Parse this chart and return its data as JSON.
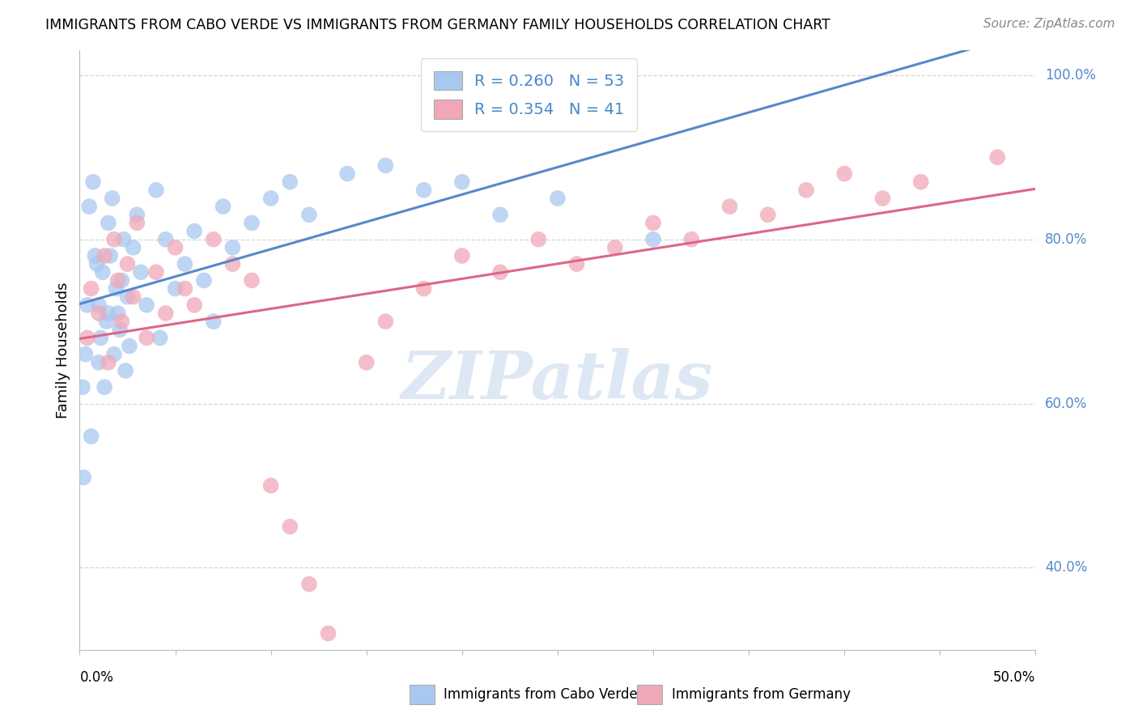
{
  "title": "IMMIGRANTS FROM CABO VERDE VS IMMIGRANTS FROM GERMANY FAMILY HOUSEHOLDS CORRELATION CHART",
  "source": "Source: ZipAtlas.com",
  "ylabel": "Family Households",
  "xmin": 0.0,
  "xmax": 50.0,
  "ymin": 30.0,
  "ymax": 103.0,
  "yticks": [
    40.0,
    60.0,
    80.0,
    100.0
  ],
  "ytick_labels": [
    "40.0%",
    "60.0%",
    "80.0%",
    "100.0%"
  ],
  "legend1_label": "R = 0.260   N = 53",
  "legend2_label": "R = 0.354   N = 41",
  "legend1_color": "#a8c8f0",
  "legend2_color": "#f0a8b8",
  "line1_color": "#5588cc",
  "line2_color": "#dd6688",
  "grid_color": "#cccccc",
  "watermark_color": "#d0dff0",
  "bottom_label1": "Immigrants from Cabo Verde",
  "bottom_label2": "Immigrants from Germany",
  "cabo_verde_x": [
    0.15,
    0.2,
    0.3,
    0.4,
    0.5,
    0.6,
    0.7,
    0.8,
    0.9,
    1.0,
    1.0,
    1.1,
    1.2,
    1.3,
    1.4,
    1.5,
    1.5,
    1.6,
    1.7,
    1.8,
    1.9,
    2.0,
    2.1,
    2.2,
    2.3,
    2.4,
    2.5,
    2.6,
    2.8,
    3.0,
    3.2,
    3.5,
    4.0,
    4.2,
    4.5,
    5.0,
    5.5,
    6.0,
    6.5,
    7.0,
    7.5,
    8.0,
    9.0,
    10.0,
    11.0,
    12.0,
    14.0,
    16.0,
    18.0,
    20.0,
    22.0,
    25.0,
    30.0
  ],
  "cabo_verde_y": [
    62,
    51,
    66,
    72,
    84,
    56,
    87,
    78,
    77,
    65,
    72,
    68,
    76,
    62,
    70,
    82,
    71,
    78,
    85,
    66,
    74,
    71,
    69,
    75,
    80,
    64,
    73,
    67,
    79,
    83,
    76,
    72,
    86,
    68,
    80,
    74,
    77,
    81,
    75,
    70,
    84,
    79,
    82,
    85,
    87,
    83,
    88,
    89,
    86,
    87,
    83,
    85,
    80
  ],
  "germany_x": [
    0.4,
    0.6,
    1.0,
    1.3,
    1.5,
    1.8,
    2.0,
    2.2,
    2.5,
    2.8,
    3.0,
    3.5,
    4.0,
    4.5,
    5.0,
    5.5,
    6.0,
    7.0,
    8.0,
    9.0,
    10.0,
    11.0,
    12.0,
    13.0,
    15.0,
    16.0,
    18.0,
    20.0,
    22.0,
    24.0,
    26.0,
    28.0,
    30.0,
    32.0,
    34.0,
    36.0,
    38.0,
    40.0,
    42.0,
    44.0,
    48.0
  ],
  "germany_y": [
    68,
    74,
    71,
    78,
    65,
    80,
    75,
    70,
    77,
    73,
    82,
    68,
    76,
    71,
    79,
    74,
    72,
    80,
    77,
    75,
    50,
    45,
    38,
    32,
    65,
    70,
    74,
    78,
    76,
    80,
    77,
    79,
    82,
    80,
    84,
    83,
    86,
    88,
    85,
    87,
    90
  ]
}
